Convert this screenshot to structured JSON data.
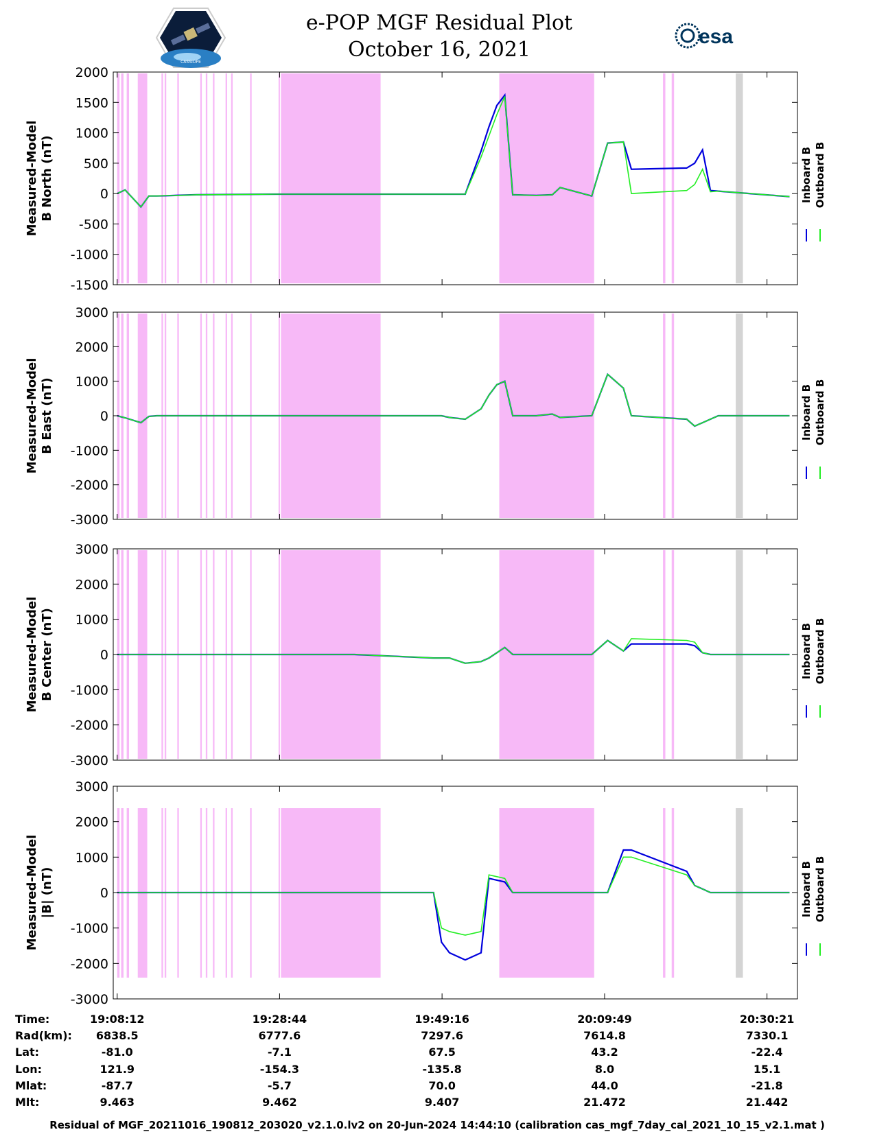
{
  "header": {
    "title_line1": "e-POP MGF Residual Plot",
    "title_line2": "October 16, 2021",
    "logo_left_text": "CASSIOPE",
    "logo_right_text": "esa"
  },
  "colors": {
    "inboard": "#0000dd",
    "outboard": "#22ee22",
    "shade_magenta": "#f7b9f7",
    "shade_gray": "#d4d4d4"
  },
  "legend": {
    "inboard": "Inboard B",
    "outboard": "Outboard B"
  },
  "chart_data": [
    {
      "type": "line",
      "panel": "B North",
      "ylabel": [
        "Measured-Model",
        "B North (nT)"
      ],
      "ylim": [
        -1500,
        2000
      ],
      "yticks": [
        2000,
        1500,
        1000,
        500,
        0,
        -500,
        -1000,
        -1500
      ],
      "series": [
        {
          "name": "Inboard B",
          "x": [
            0,
            1,
            3,
            4,
            5,
            10,
            20,
            30,
            40,
            41,
            42,
            44,
            46,
            47,
            48,
            49,
            50,
            53,
            55,
            56,
            60,
            62,
            64,
            65,
            72,
            73,
            74,
            75,
            76,
            85
          ],
          "y": [
            0,
            60,
            -220,
            -40,
            -40,
            -20,
            -10,
            -10,
            -10,
            -10,
            -10,
            -10,
            700,
            1100,
            1450,
            1620,
            -20,
            -30,
            -20,
            100,
            -40,
            830,
            850,
            400,
            420,
            500,
            720,
            50,
            40,
            -50
          ]
        },
        {
          "name": "Outboard B",
          "x": [
            0,
            1,
            3,
            4,
            5,
            10,
            20,
            30,
            40,
            41,
            42,
            44,
            46,
            47,
            48,
            49,
            50,
            53,
            55,
            56,
            60,
            62,
            64,
            65,
            72,
            73,
            74,
            75,
            76,
            85
          ],
          "y": [
            0,
            60,
            -220,
            -40,
            -40,
            -20,
            -10,
            -10,
            -10,
            -10,
            -10,
            -10,
            600,
            950,
            1300,
            1600,
            -20,
            -30,
            -20,
            100,
            -40,
            830,
            850,
            0,
            50,
            150,
            400,
            30,
            40,
            -50
          ]
        }
      ]
    },
    {
      "type": "line",
      "panel": "B East",
      "ylabel": [
        "Measured-Model",
        "B East (nT)"
      ],
      "ylim": [
        -3000,
        3000
      ],
      "yticks": [
        3000,
        2000,
        1000,
        0,
        -1000,
        -2000,
        -3000
      ],
      "series": [
        {
          "name": "Inboard B",
          "x": [
            0,
            1,
            3,
            4,
            5,
            10,
            20,
            30,
            40,
            41,
            42,
            44,
            46,
            47,
            48,
            49,
            50,
            53,
            55,
            56,
            60,
            62,
            64,
            65,
            72,
            73,
            74,
            75,
            76,
            85
          ],
          "y": [
            0,
            -60,
            -200,
            -20,
            0,
            0,
            0,
            0,
            0,
            0,
            -50,
            -100,
            200,
            600,
            900,
            1000,
            0,
            0,
            50,
            -50,
            0,
            1200,
            800,
            0,
            -100,
            -300,
            -200,
            -100,
            0,
            0
          ]
        },
        {
          "name": "Outboard B",
          "x": [
            0,
            1,
            3,
            4,
            5,
            10,
            20,
            30,
            40,
            41,
            42,
            44,
            46,
            47,
            48,
            49,
            50,
            53,
            55,
            56,
            60,
            62,
            64,
            65,
            72,
            73,
            74,
            75,
            76,
            85
          ],
          "y": [
            0,
            -60,
            -200,
            -20,
            0,
            0,
            0,
            0,
            0,
            0,
            -50,
            -100,
            200,
            600,
            900,
            1000,
            0,
            0,
            50,
            -50,
            0,
            1200,
            800,
            0,
            -100,
            -300,
            -200,
            -100,
            0,
            0
          ]
        }
      ]
    },
    {
      "type": "line",
      "panel": "B Center",
      "ylabel": [
        "Measured-Model",
        "B Center (nT)"
      ],
      "ylim": [
        -3000,
        3000
      ],
      "yticks": [
        3000,
        2000,
        1000,
        0,
        -1000,
        -2000,
        -3000
      ],
      "series": [
        {
          "name": "Inboard B",
          "x": [
            0,
            1,
            3,
            4,
            5,
            10,
            20,
            30,
            40,
            41,
            42,
            44,
            46,
            47,
            48,
            49,
            50,
            53,
            55,
            56,
            60,
            62,
            64,
            65,
            72,
            73,
            74,
            75,
            76,
            85
          ],
          "y": [
            0,
            0,
            0,
            0,
            0,
            0,
            0,
            0,
            -100,
            -100,
            -100,
            -250,
            -200,
            -100,
            50,
            200,
            0,
            0,
            0,
            0,
            0,
            400,
            100,
            300,
            300,
            250,
            50,
            0,
            0,
            0
          ]
        },
        {
          "name": "Outboard B",
          "x": [
            0,
            1,
            3,
            4,
            5,
            10,
            20,
            30,
            40,
            41,
            42,
            44,
            46,
            47,
            48,
            49,
            50,
            53,
            55,
            56,
            60,
            62,
            64,
            65,
            72,
            73,
            74,
            75,
            76,
            85
          ],
          "y": [
            0,
            0,
            0,
            0,
            0,
            0,
            0,
            0,
            -100,
            -100,
            -100,
            -250,
            -200,
            -100,
            50,
            200,
            0,
            0,
            0,
            0,
            0,
            400,
            100,
            450,
            400,
            350,
            50,
            0,
            0,
            0
          ]
        }
      ]
    },
    {
      "type": "line",
      "panel": "|B|",
      "ylabel": [
        "Measured-Model",
        "|B| (nT)"
      ],
      "ylim": [
        -3000,
        3000
      ],
      "yticks": [
        3000,
        2000,
        1000,
        0,
        -1000,
        -2000,
        -3000
      ],
      "series": [
        {
          "name": "Inboard B",
          "x": [
            0,
            1,
            3,
            4,
            5,
            10,
            20,
            30,
            40,
            41,
            42,
            44,
            46,
            47,
            48,
            49,
            50,
            53,
            55,
            56,
            60,
            62,
            64,
            65,
            72,
            73,
            74,
            75,
            76,
            85
          ],
          "y": [
            0,
            0,
            0,
            0,
            0,
            0,
            0,
            0,
            0,
            -1400,
            -1700,
            -1900,
            -1700,
            400,
            350,
            300,
            0,
            0,
            0,
            0,
            0,
            0,
            1200,
            1200,
            600,
            200,
            100,
            0,
            0,
            0
          ]
        },
        {
          "name": "Outboard B",
          "x": [
            0,
            1,
            3,
            4,
            5,
            10,
            20,
            30,
            40,
            41,
            42,
            44,
            46,
            47,
            48,
            49,
            50,
            53,
            55,
            56,
            60,
            62,
            64,
            65,
            72,
            73,
            74,
            75,
            76,
            85
          ],
          "y": [
            0,
            0,
            0,
            0,
            0,
            0,
            0,
            0,
            0,
            -1000,
            -1100,
            -1200,
            -1100,
            500,
            450,
            400,
            0,
            0,
            0,
            0,
            0,
            0,
            1000,
            1000,
            500,
            200,
            100,
            0,
            0,
            0
          ]
        }
      ]
    }
  ],
  "x_axis": {
    "ticks": [
      {
        "time": "19:08:12",
        "rad": "6838.5",
        "lat": "-81.0",
        "lon": "121.9",
        "mlat": "-87.7",
        "mlt": "9.463"
      },
      {
        "time": "19:28:44",
        "rad": "6777.6",
        "lat": "-7.1",
        "lon": "-154.3",
        "mlat": "-5.7",
        "mlt": "9.462"
      },
      {
        "time": "19:49:16",
        "rad": "7297.6",
        "lat": "67.5",
        "lon": "-135.8",
        "mlat": "70.0",
        "mlt": "9.407"
      },
      {
        "time": "20:09:49",
        "rad": "7614.8",
        "lat": "43.2",
        "lon": "8.0",
        "mlat": "44.0",
        "mlt": "21.472"
      },
      {
        "time": "20:30:21",
        "rad": "7330.1",
        "lat": "-22.4",
        "lon": "15.1",
        "mlat": "-21.8",
        "mlt": "21.442"
      }
    ],
    "row_labels": {
      "time": "Time:",
      "rad": "Rad(km):",
      "lat": "Lat:",
      "lon": "Lon:",
      "mlat": "Mlat:",
      "mlt": "Mlt:"
    }
  },
  "shading": {
    "magenta_intervals_min": [
      [
        0.0,
        0.3
      ],
      [
        0.5,
        0.8
      ],
      [
        1.2,
        1.5
      ],
      [
        2.6,
        3.8
      ],
      [
        5.6,
        5.8
      ],
      [
        6.0,
        6.2
      ],
      [
        7.6,
        7.8
      ],
      [
        10.5,
        10.7
      ],
      [
        11.2,
        11.4
      ],
      [
        12.1,
        12.3
      ],
      [
        13.7,
        13.9
      ],
      [
        14.4,
        14.6
      ],
      [
        16.8,
        17.0
      ],
      [
        20.4,
        20.5
      ],
      [
        20.7,
        33.3
      ],
      [
        48.3,
        60.3
      ],
      [
        69.0,
        69.3
      ],
      [
        70.1,
        70.4
      ]
    ],
    "gray_intervals_min": [
      [
        78.2,
        79.1
      ]
    ]
  },
  "footer": "Residual of MGF_20211016_190812_203020_v2.1.0.lv2 on 20-Jun-2024 14:44:10 (calibration cas_mgf_7day_cal_2021_10_15_v2.1.mat )"
}
